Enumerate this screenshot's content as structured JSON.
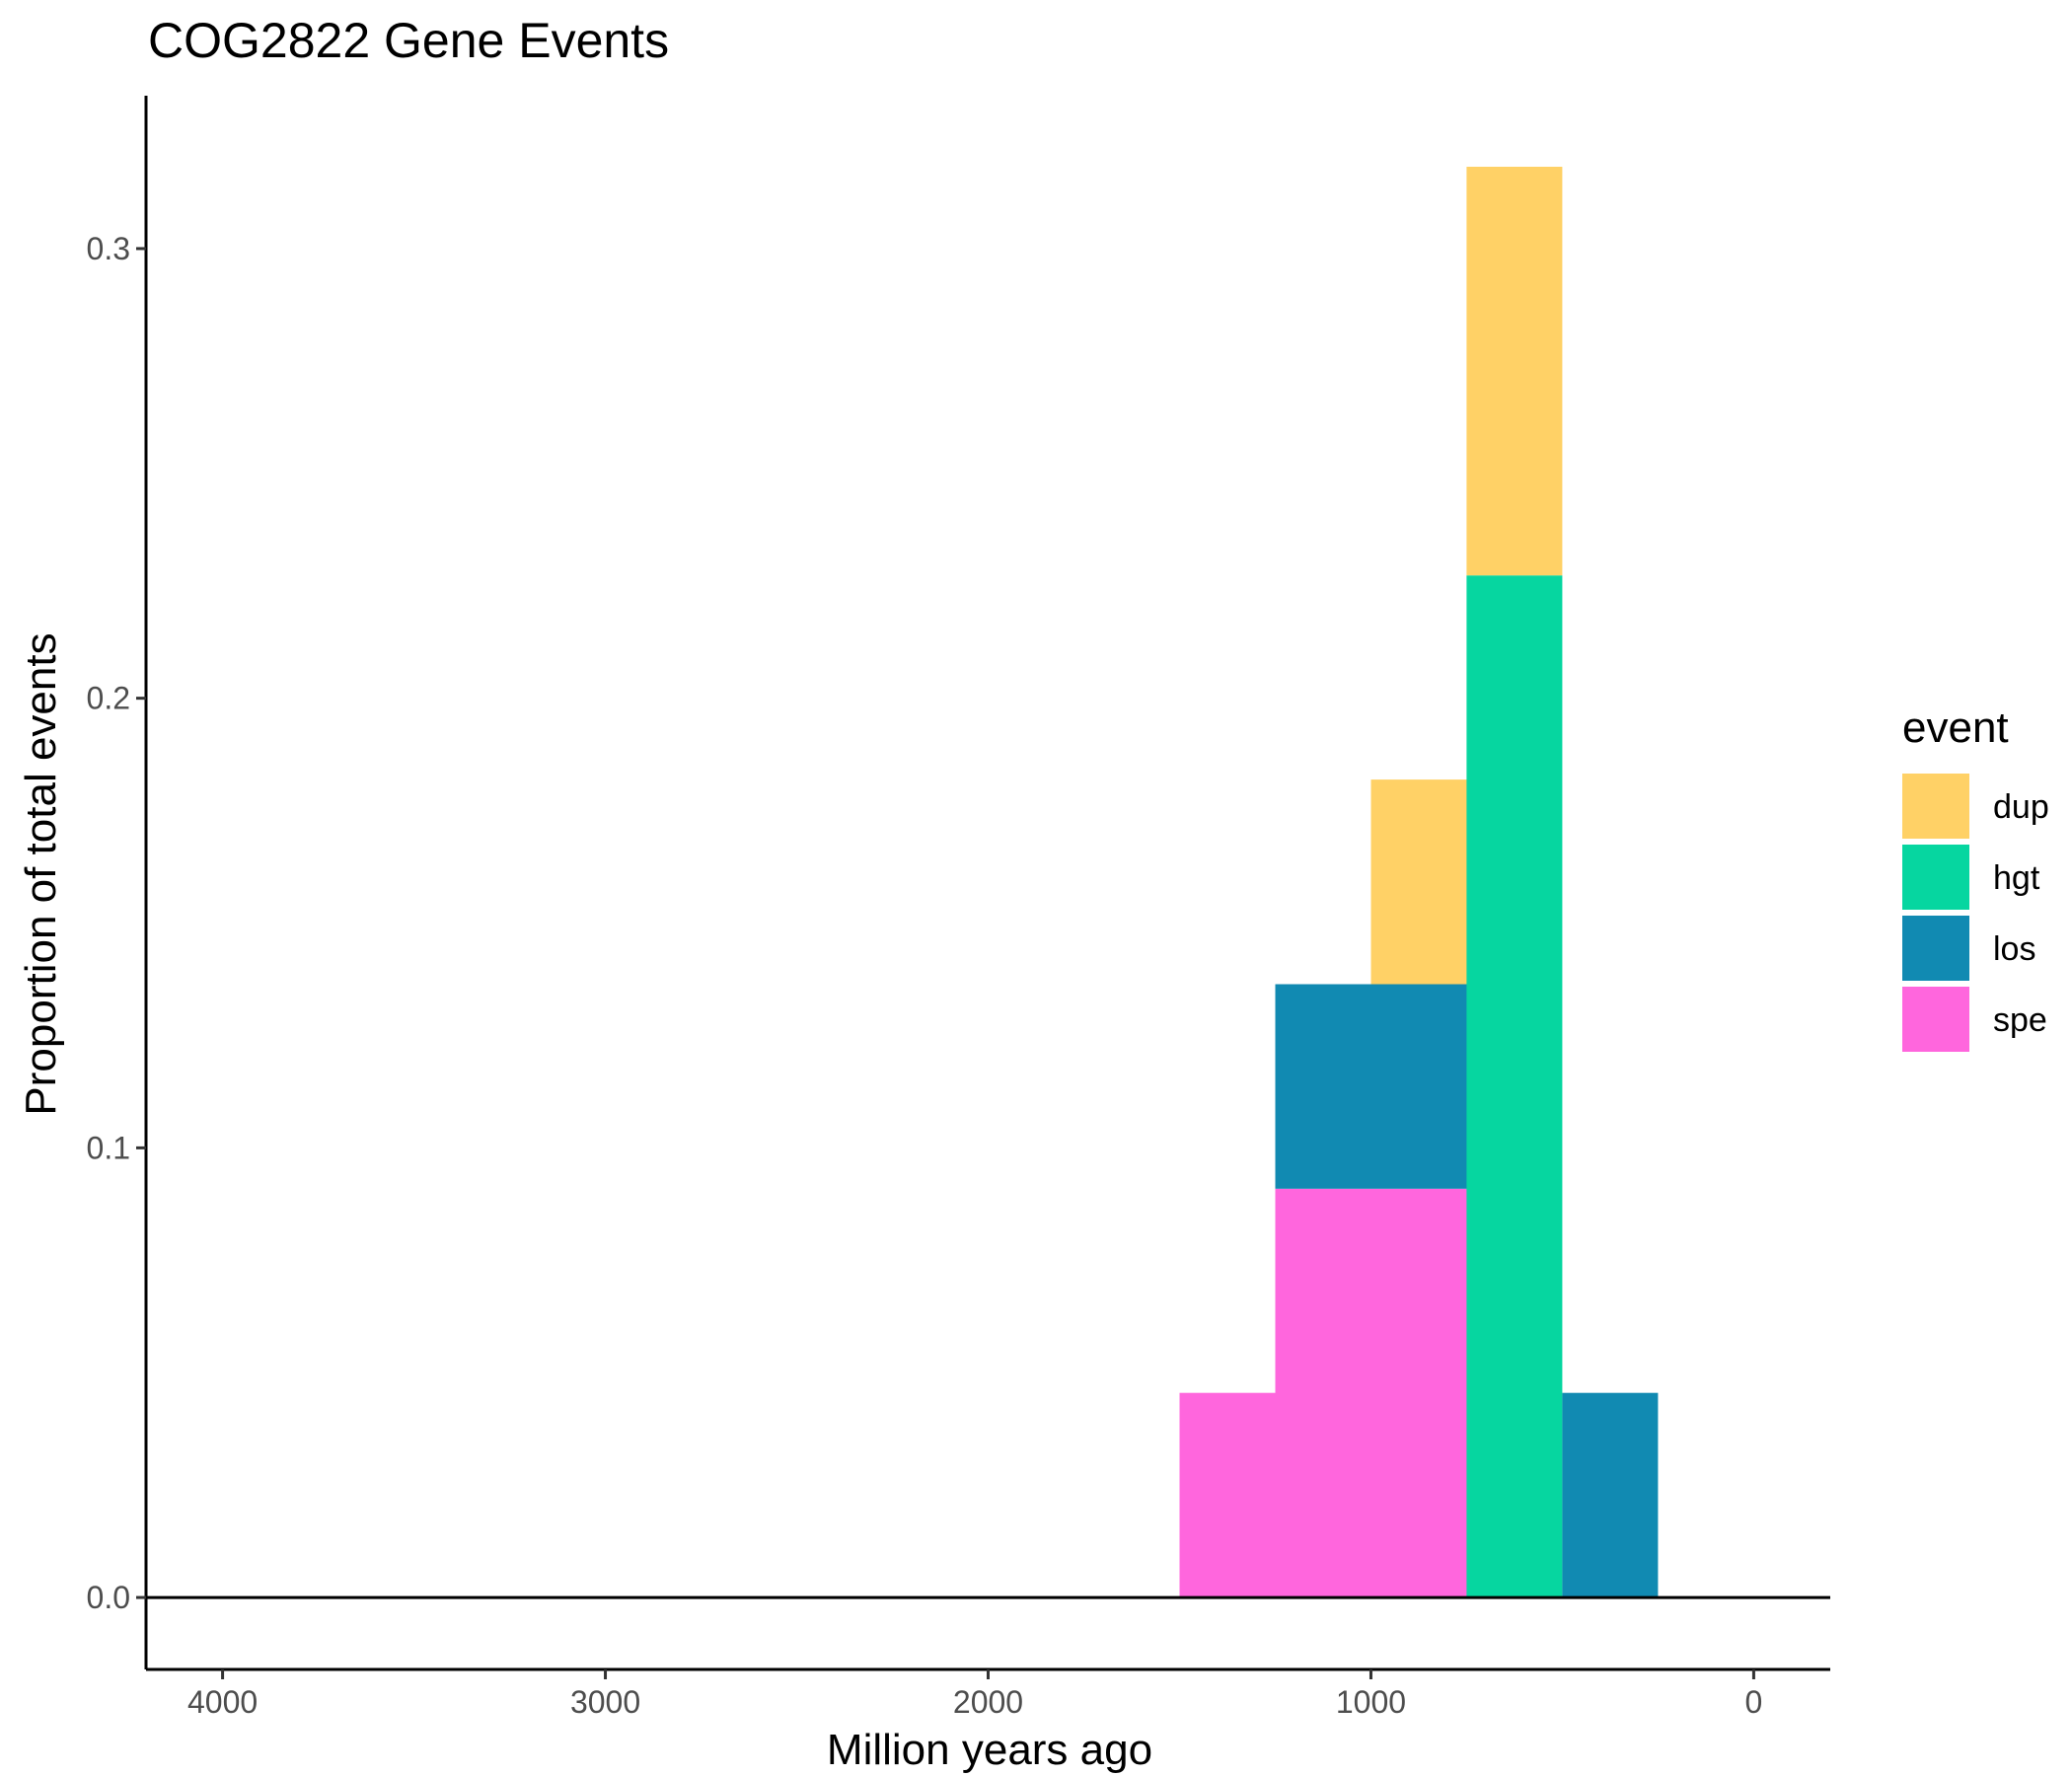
{
  "chart_data": {
    "type": "bar",
    "stacked": true,
    "title": "COG2822 Gene Events",
    "xlabel": "Million years ago",
    "ylabel": "Proportion of total events",
    "x_reversed": true,
    "xlim": [
      4200,
      -200
    ],
    "ylim": [
      -0.016,
      0.334
    ],
    "x_ticks": [
      4000,
      3000,
      2000,
      1000,
      0
    ],
    "x_tick_labels": [
      "4000",
      "3000",
      "2000",
      "1000",
      "0"
    ],
    "y_ticks": [
      0.0,
      0.1,
      0.2,
      0.3
    ],
    "y_tick_labels": [
      "0.0",
      "0.1",
      "0.2",
      "0.3"
    ],
    "bin_width": 250,
    "bins": [
      [
        1250,
        1500
      ],
      [
        1000,
        1250
      ],
      [
        750,
        1000
      ],
      [
        500,
        750
      ],
      [
        250,
        500
      ]
    ],
    "series": [
      {
        "name": "spe",
        "color": "#FF66DD",
        "values": [
          0.0455,
          0.0909,
          0.0909,
          0.0,
          0.0
        ]
      },
      {
        "name": "los",
        "color": "#118AB2",
        "values": [
          0.0,
          0.0455,
          0.0455,
          0.0,
          0.0455
        ]
      },
      {
        "name": "hgt",
        "color": "#06D6A0",
        "values": [
          0.0,
          0.0,
          0.0,
          0.2273,
          0.0
        ]
      },
      {
        "name": "dup",
        "color": "#FFD166",
        "values": [
          0.0,
          0.0,
          0.0455,
          0.0909,
          0.0
        ]
      }
    ],
    "grid": false,
    "legend": {
      "title": "event",
      "placement": "right",
      "items": [
        "dup",
        "hgt",
        "los",
        "spe"
      ]
    }
  }
}
